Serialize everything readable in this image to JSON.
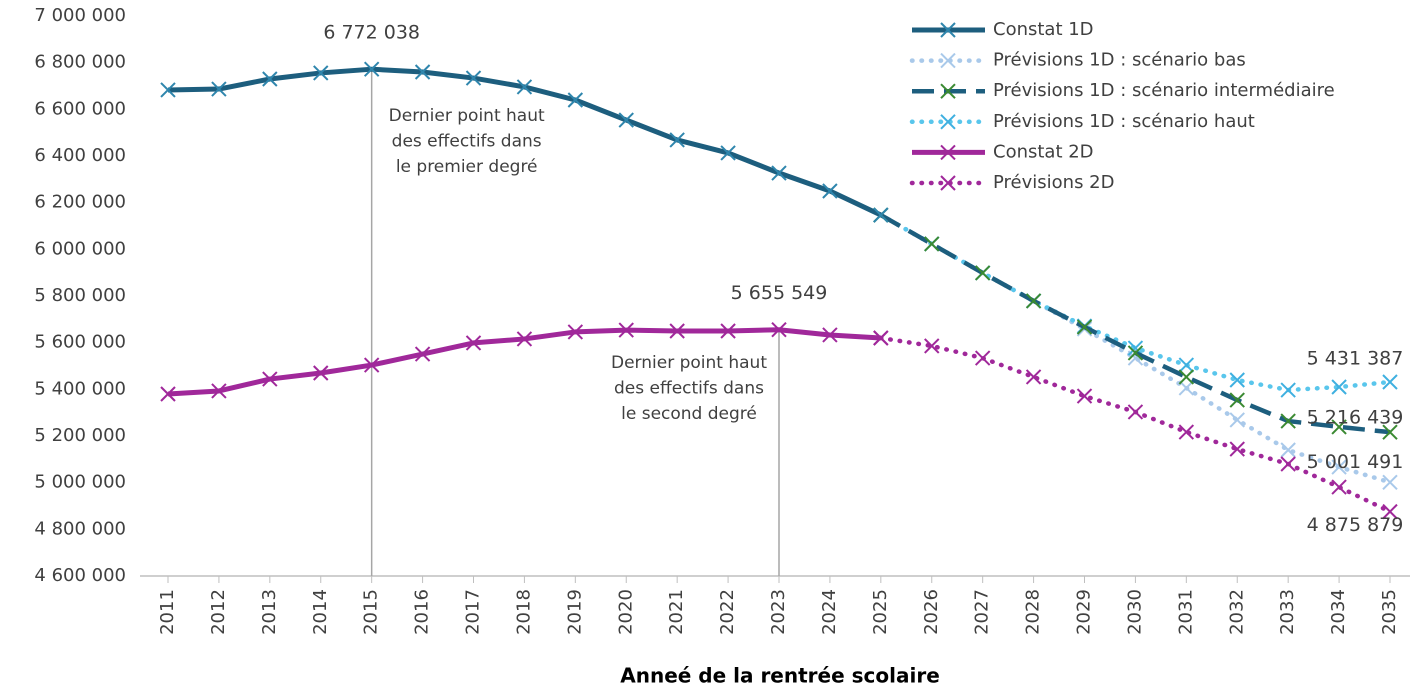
{
  "chart_data": {
    "type": "line",
    "x_label": "Anneé de la rentrée scolaire",
    "categories": [
      "2011",
      "2012",
      "2013",
      "2014",
      "2015",
      "2016",
      "2017",
      "2018",
      "2019",
      "2020",
      "2021",
      "2022",
      "2023",
      "2024",
      "2025",
      "2026",
      "2027",
      "2028",
      "2029",
      "2030",
      "2031",
      "2032",
      "2033",
      "2034",
      "2035"
    ],
    "ylim": [
      4600000,
      7000000
    ],
    "yticks": [
      {
        "value": 4600000,
        "label": "4 600 000"
      },
      {
        "value": 4800000,
        "label": "4 800 000"
      },
      {
        "value": 5000000,
        "label": "5 000 000"
      },
      {
        "value": 5200000,
        "label": "5 200 000"
      },
      {
        "value": 5400000,
        "label": "5 400 000"
      },
      {
        "value": 5600000,
        "label": "5 600 000"
      },
      {
        "value": 5800000,
        "label": "5 800 000"
      },
      {
        "value": 6000000,
        "label": "6 000 000"
      },
      {
        "value": 6200000,
        "label": "6 200 000"
      },
      {
        "value": 6400000,
        "label": "6 400 000"
      },
      {
        "value": 6600000,
        "label": "6 600 000"
      },
      {
        "value": 6800000,
        "label": "6 800 000"
      },
      {
        "value": 7000000,
        "label": "7 000 000"
      }
    ],
    "grid": false,
    "legend": "top-right",
    "series": [
      {
        "name": "Constat 1D",
        "color": "#1d5e7e",
        "marker_color": "#2f86ad",
        "line_style": "solid",
        "values": [
          6683000,
          6687000,
          6730000,
          6756000,
          6772038,
          6760000,
          6734000,
          6696000,
          6640000,
          6554000,
          6469000,
          6413000,
          6327000,
          6250000,
          6147000,
          null,
          null,
          null,
          null,
          null,
          null,
          null,
          null,
          null,
          null
        ],
        "value_labels": [
          null,
          null,
          null,
          null,
          "6 772 038",
          null,
          null,
          null,
          null,
          null,
          null,
          null,
          null,
          null,
          null,
          null,
          null,
          null,
          null,
          null,
          null,
          null,
          null,
          null,
          null
        ]
      },
      {
        "name": "Prévisions 1D : scénario bas",
        "color": "#a9c9ea",
        "marker_color": "#a9c9ea",
        "line_style": "dotted",
        "values": [
          null,
          null,
          null,
          null,
          null,
          null,
          null,
          null,
          null,
          null,
          null,
          null,
          null,
          null,
          6147000,
          6023000,
          5899000,
          5779000,
          5659000,
          5534000,
          5406000,
          5269000,
          5140000,
          5067000,
          5001491
        ],
        "value_labels": [
          null,
          null,
          null,
          null,
          null,
          null,
          null,
          null,
          null,
          null,
          null,
          null,
          null,
          null,
          null,
          null,
          null,
          null,
          null,
          null,
          null,
          null,
          null,
          null,
          "5 001 491"
        ]
      },
      {
        "name": "Prévisions 1D : scénario intermédiaire",
        "color": "#1d5e7e",
        "marker_color": "#3b8a32",
        "line_style": "dashed",
        "values": [
          null,
          null,
          null,
          null,
          null,
          null,
          null,
          null,
          null,
          null,
          null,
          null,
          null,
          null,
          6147000,
          6023000,
          5899000,
          5779000,
          5667000,
          5556000,
          5453000,
          5354000,
          5264000,
          5239000,
          5216439
        ],
        "value_labels": [
          null,
          null,
          null,
          null,
          null,
          null,
          null,
          null,
          null,
          null,
          null,
          null,
          null,
          null,
          null,
          null,
          null,
          null,
          null,
          null,
          null,
          null,
          null,
          null,
          "5 216 439"
        ]
      },
      {
        "name": "Prévisions 1D : scénario haut",
        "color": "#59c6ec",
        "marker_color": "#3fb0e0",
        "line_style": "dotted",
        "values": [
          null,
          null,
          null,
          null,
          null,
          null,
          null,
          null,
          null,
          null,
          null,
          null,
          null,
          null,
          6147000,
          6023000,
          5899000,
          5779000,
          5671000,
          5577000,
          5504000,
          5440000,
          5397000,
          5410000,
          5431387
        ],
        "value_labels": [
          null,
          null,
          null,
          null,
          null,
          null,
          null,
          null,
          null,
          null,
          null,
          null,
          null,
          null,
          null,
          null,
          null,
          null,
          null,
          null,
          null,
          null,
          null,
          null,
          "5 431 387"
        ]
      },
      {
        "name": "Constat 2D",
        "color": "#a0289a",
        "marker_color": "#a0289a",
        "line_style": "solid",
        "values": [
          5380000,
          5393000,
          5444000,
          5470000,
          5504000,
          5551000,
          5599000,
          5616000,
          5646000,
          5654000,
          5650000,
          5650000,
          5655549,
          5633000,
          5620000,
          null,
          null,
          null,
          null,
          null,
          null,
          null,
          null,
          null,
          null
        ],
        "value_labels": [
          null,
          null,
          null,
          null,
          null,
          null,
          null,
          null,
          null,
          null,
          null,
          null,
          "5 655 549",
          null,
          null,
          null,
          null,
          null,
          null,
          null,
          null,
          null,
          null,
          null,
          null
        ]
      },
      {
        "name": "Prévisions 2D",
        "color": "#a0289a",
        "marker_color": "#a0289a",
        "line_style": "dotted",
        "values": [
          null,
          null,
          null,
          null,
          null,
          null,
          null,
          null,
          null,
          null,
          null,
          null,
          null,
          null,
          5620000,
          5586000,
          5534000,
          5453000,
          5371000,
          5303000,
          5217000,
          5144000,
          5080000,
          4981000,
          4875879
        ],
        "value_labels": [
          null,
          null,
          null,
          null,
          null,
          null,
          null,
          null,
          null,
          null,
          null,
          null,
          null,
          null,
          null,
          null,
          null,
          null,
          null,
          null,
          null,
          null,
          null,
          null,
          "4 875 879"
        ]
      }
    ],
    "annotations": [
      {
        "category": "2015",
        "lines": [
          "Dernier point haut",
          "des effectifs dans",
          "le premier degré"
        ]
      },
      {
        "category": "2023",
        "lines": [
          "Dernier point haut",
          "des effectifs dans",
          "le second degré"
        ]
      }
    ]
  }
}
